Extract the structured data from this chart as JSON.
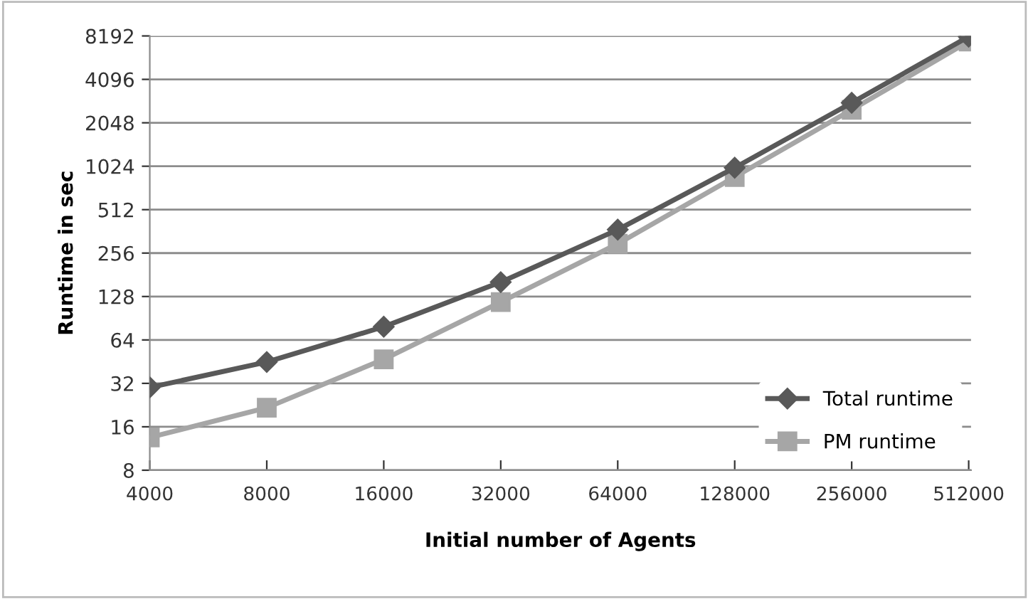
{
  "chart_data": {
    "type": "line",
    "xlabel": "Initial number of Agents",
    "ylabel": "Runtime in sec",
    "categories": [
      "4000",
      "8000",
      "16000",
      "32000",
      "64000",
      "128000",
      "256000",
      "512000"
    ],
    "series": [
      {
        "name": "Total runtime",
        "color": "#595959",
        "marker": "diamond",
        "values": [
          30,
          45,
          79,
          161,
          372,
          1000,
          2820,
          8100
        ]
      },
      {
        "name": "PM runtime",
        "color": "#a6a6a6",
        "marker": "square",
        "values": [
          13.5,
          21.7,
          47,
          117,
          297,
          862,
          2520,
          7500
        ]
      }
    ],
    "log": "y",
    "ylim": [
      8,
      8192
    ],
    "yticks": [
      8,
      16,
      32,
      64,
      128,
      256,
      512,
      1024,
      2048,
      4096,
      8192
    ],
    "grid": "y",
    "legend": "bottom right",
    "line_style": "solid"
  }
}
